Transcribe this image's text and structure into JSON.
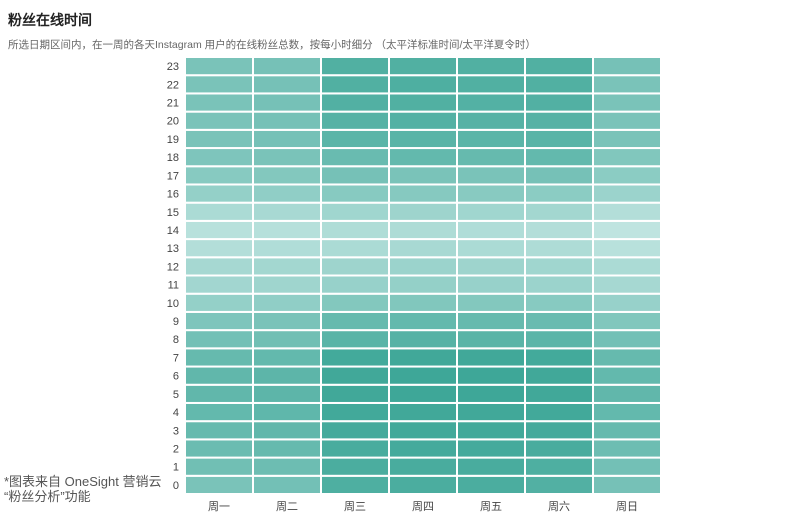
{
  "header": {
    "title": "粉丝在线时间",
    "subtitle": "所选日期区间内，在一周的各天Instagram 用户的在线粉丝总数，按每小时细分 （太平洋标准时间/太平洋夏令时）"
  },
  "footnote": {
    "line1": "*图表来自 OneSight 营销云",
    "line2": "“粉丝分析”功能"
  },
  "colors": {
    "low": "#c3e6e2",
    "high": "#3ea798",
    "grid_line": "#ffffff",
    "tick_text": "#444444"
  },
  "chart_data": {
    "type": "heatmap",
    "title": "粉丝在线时间",
    "x": [
      "周一",
      "周二",
      "周三",
      "周四",
      "周五",
      "周六",
      "周日"
    ],
    "y": [
      "0",
      "1",
      "2",
      "3",
      "4",
      "5",
      "6",
      "7",
      "8",
      "9",
      "10",
      "11",
      "12",
      "13",
      "14",
      "15",
      "16",
      "17",
      "18",
      "19",
      "20",
      "21",
      "22",
      "23"
    ],
    "values_scale": "relative intensity 0-1",
    "values": [
      [
        0.55,
        0.6,
        0.88,
        0.9,
        0.9,
        0.85,
        0.58
      ],
      [
        0.62,
        0.65,
        0.9,
        0.92,
        0.92,
        0.88,
        0.6
      ],
      [
        0.66,
        0.7,
        0.92,
        0.95,
        0.95,
        0.92,
        0.65
      ],
      [
        0.7,
        0.74,
        0.95,
        0.97,
        0.97,
        0.95,
        0.7
      ],
      [
        0.72,
        0.75,
        0.97,
        0.98,
        0.98,
        0.97,
        0.72
      ],
      [
        0.74,
        0.77,
        0.98,
        1.0,
        1.0,
        0.98,
        0.74
      ],
      [
        0.74,
        0.77,
        0.98,
        1.0,
        1.0,
        0.98,
        0.72
      ],
      [
        0.7,
        0.72,
        0.96,
        0.98,
        0.98,
        0.96,
        0.7
      ],
      [
        0.6,
        0.62,
        0.8,
        0.82,
        0.8,
        0.78,
        0.6
      ],
      [
        0.52,
        0.55,
        0.7,
        0.72,
        0.7,
        0.68,
        0.5
      ],
      [
        0.35,
        0.38,
        0.48,
        0.5,
        0.48,
        0.45,
        0.33
      ],
      [
        0.25,
        0.27,
        0.33,
        0.35,
        0.33,
        0.3,
        0.22
      ],
      [
        0.22,
        0.24,
        0.28,
        0.3,
        0.28,
        0.26,
        0.18
      ],
      [
        0.12,
        0.14,
        0.18,
        0.2,
        0.18,
        0.16,
        0.08
      ],
      [
        0.08,
        0.1,
        0.15,
        0.16,
        0.14,
        0.12,
        0.03
      ],
      [
        0.18,
        0.2,
        0.26,
        0.28,
        0.26,
        0.24,
        0.12
      ],
      [
        0.35,
        0.38,
        0.45,
        0.46,
        0.44,
        0.42,
        0.3
      ],
      [
        0.45,
        0.48,
        0.58,
        0.55,
        0.55,
        0.58,
        0.42
      ],
      [
        0.52,
        0.55,
        0.68,
        0.72,
        0.7,
        0.72,
        0.5
      ],
      [
        0.55,
        0.58,
        0.78,
        0.8,
        0.78,
        0.8,
        0.55
      ],
      [
        0.55,
        0.58,
        0.82,
        0.84,
        0.82,
        0.82,
        0.55
      ],
      [
        0.55,
        0.58,
        0.85,
        0.86,
        0.84,
        0.85,
        0.55
      ],
      [
        0.55,
        0.58,
        0.86,
        0.88,
        0.86,
        0.86,
        0.55
      ],
      [
        0.55,
        0.58,
        0.86,
        0.86,
        0.86,
        0.86,
        0.58
      ]
    ],
    "grid": false,
    "legend": "none"
  }
}
